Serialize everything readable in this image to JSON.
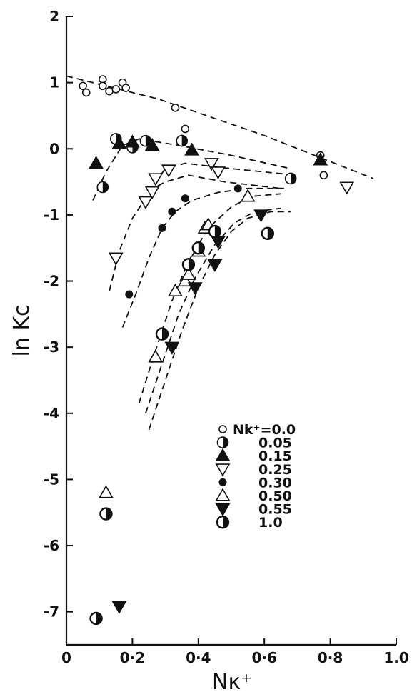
{
  "chart_data": {
    "type": "scatter",
    "title": "",
    "xlabel": "Nκ⁺",
    "ylabel": "ln Kc",
    "xlim": [
      0,
      1.0
    ],
    "ylim": [
      -7.5,
      2
    ],
    "x_ticks": [
      0,
      0.2,
      0.4,
      0.6,
      0.8,
      1.0
    ],
    "x_tick_labels": [
      "0",
      "0·2",
      "0·4",
      "0·6",
      "0·8",
      "1.0"
    ],
    "y_ticks": [
      2,
      1,
      0,
      -1,
      -2,
      -3,
      -4,
      -5,
      -6,
      -7
    ],
    "y_tick_labels": [
      "2",
      "1",
      "0",
      "-1",
      "-2",
      "-3",
      "-4",
      "-5",
      "-6",
      "-7"
    ],
    "grid": false,
    "legend_position": "lower-right",
    "legend_prefix": "Nk⁺=",
    "series": [
      {
        "name": "0.0",
        "marker": "circle-open-small",
        "x": [
          0.05,
          0.06,
          0.11,
          0.11,
          0.13,
          0.15,
          0.17,
          0.18,
          0.33,
          0.35,
          0.36,
          0.77,
          0.78
        ],
        "y": [
          0.95,
          0.85,
          1.05,
          0.95,
          0.87,
          0.9,
          1.0,
          0.92,
          0.62,
          0.15,
          0.3,
          -0.1,
          -0.4
        ]
      },
      {
        "name": "0.05",
        "marker": "circle-half",
        "x": [
          0.11,
          0.15,
          0.2,
          0.24,
          0.35,
          0.68
        ],
        "y": [
          -0.58,
          0.15,
          0.02,
          0.12,
          0.12,
          -0.45
        ]
      },
      {
        "name": "0.15",
        "marker": "triangle-up-filled",
        "x": [
          0.09,
          0.16,
          0.2,
          0.26,
          0.38,
          0.77
        ],
        "y": [
          -0.22,
          0.08,
          0.1,
          0.05,
          -0.02,
          -0.17
        ]
      },
      {
        "name": "0.25",
        "marker": "triangle-down-open",
        "x": [
          0.15,
          0.24,
          0.26,
          0.27,
          0.31,
          0.44,
          0.46,
          0.85
        ],
        "y": [
          -1.65,
          -0.8,
          -0.65,
          -0.45,
          -0.32,
          -0.22,
          -0.35,
          -0.58
        ]
      },
      {
        "name": "0.30",
        "marker": "circle-filled-small",
        "x": [
          0.19,
          0.29,
          0.32,
          0.36,
          0.52
        ],
        "y": [
          -2.2,
          -1.2,
          -0.95,
          -0.75,
          -0.6
        ]
      },
      {
        "name": "0.50",
        "marker": "triangle-up-open",
        "x": [
          0.27,
          0.33,
          0.36,
          0.37,
          0.4,
          0.42,
          0.43,
          0.55,
          0.12
        ],
        "y": [
          -3.15,
          -2.15,
          -2.0,
          -1.9,
          -1.55,
          -1.2,
          -1.15,
          -0.72,
          -5.2
        ]
      },
      {
        "name": "0.55",
        "marker": "triangle-down-filled",
        "x": [
          0.32,
          0.39,
          0.45,
          0.46,
          0.59,
          0.16
        ],
        "y": [
          -3.0,
          -2.1,
          -1.75,
          -1.4,
          -1.0,
          -6.92
        ]
      },
      {
        "name": "1.0",
        "marker": "circle-half-bold",
        "x": [
          0.29,
          0.37,
          0.4,
          0.45,
          0.61,
          0.12,
          0.09
        ],
        "y": [
          -2.8,
          -1.75,
          -1.5,
          -1.25,
          -1.28,
          -5.52,
          -7.1
        ]
      }
    ],
    "fit_lines": [
      {
        "x": [
          0.0,
          0.28,
          0.6,
          0.93
        ],
        "y": [
          1.1,
          0.75,
          0.2,
          -0.45
        ]
      },
      {
        "x": [
          0.08,
          0.12,
          0.17,
          0.22,
          0.34,
          0.5,
          0.68
        ],
        "y": [
          -0.78,
          -0.35,
          0.05,
          0.15,
          0.05,
          -0.1,
          -0.3
        ]
      },
      {
        "x": [
          0.27,
          0.3,
          0.36,
          0.5,
          0.7
        ],
        "y": [
          -0.5,
          -0.3,
          -0.22,
          -0.3,
          -0.4
        ]
      },
      {
        "x": [
          0.13,
          0.16,
          0.2,
          0.24,
          0.27,
          0.3,
          0.37,
          0.48,
          0.65
        ],
        "y": [
          -2.15,
          -1.55,
          -1.05,
          -0.75,
          -0.58,
          -0.5,
          -0.4,
          -0.5,
          -0.6
        ]
      },
      {
        "x": [
          0.17,
          0.21,
          0.25,
          0.29,
          0.33,
          0.38,
          0.46,
          0.55,
          0.66
        ],
        "y": [
          -2.7,
          -2.2,
          -1.65,
          -1.2,
          -0.95,
          -0.78,
          -0.66,
          -0.6,
          -0.6
        ]
      },
      {
        "x": [
          0.22,
          0.27,
          0.32,
          0.37,
          0.43,
          0.5,
          0.56,
          0.65
        ],
        "y": [
          -3.85,
          -3.05,
          -2.3,
          -1.7,
          -1.2,
          -0.88,
          -0.72,
          -0.68
        ]
      },
      {
        "x": [
          0.24,
          0.29,
          0.34,
          0.39,
          0.45,
          0.51,
          0.57,
          0.65
        ],
        "y": [
          -4.0,
          -3.25,
          -2.5,
          -1.95,
          -1.45,
          -1.12,
          -0.95,
          -0.9
        ]
      },
      {
        "x": [
          0.25,
          0.3,
          0.35,
          0.4,
          0.45,
          0.5,
          0.55,
          0.62,
          0.68
        ],
        "y": [
          -4.25,
          -3.5,
          -2.75,
          -2.1,
          -1.6,
          -1.25,
          -1.05,
          -0.95,
          -0.95
        ]
      }
    ]
  }
}
